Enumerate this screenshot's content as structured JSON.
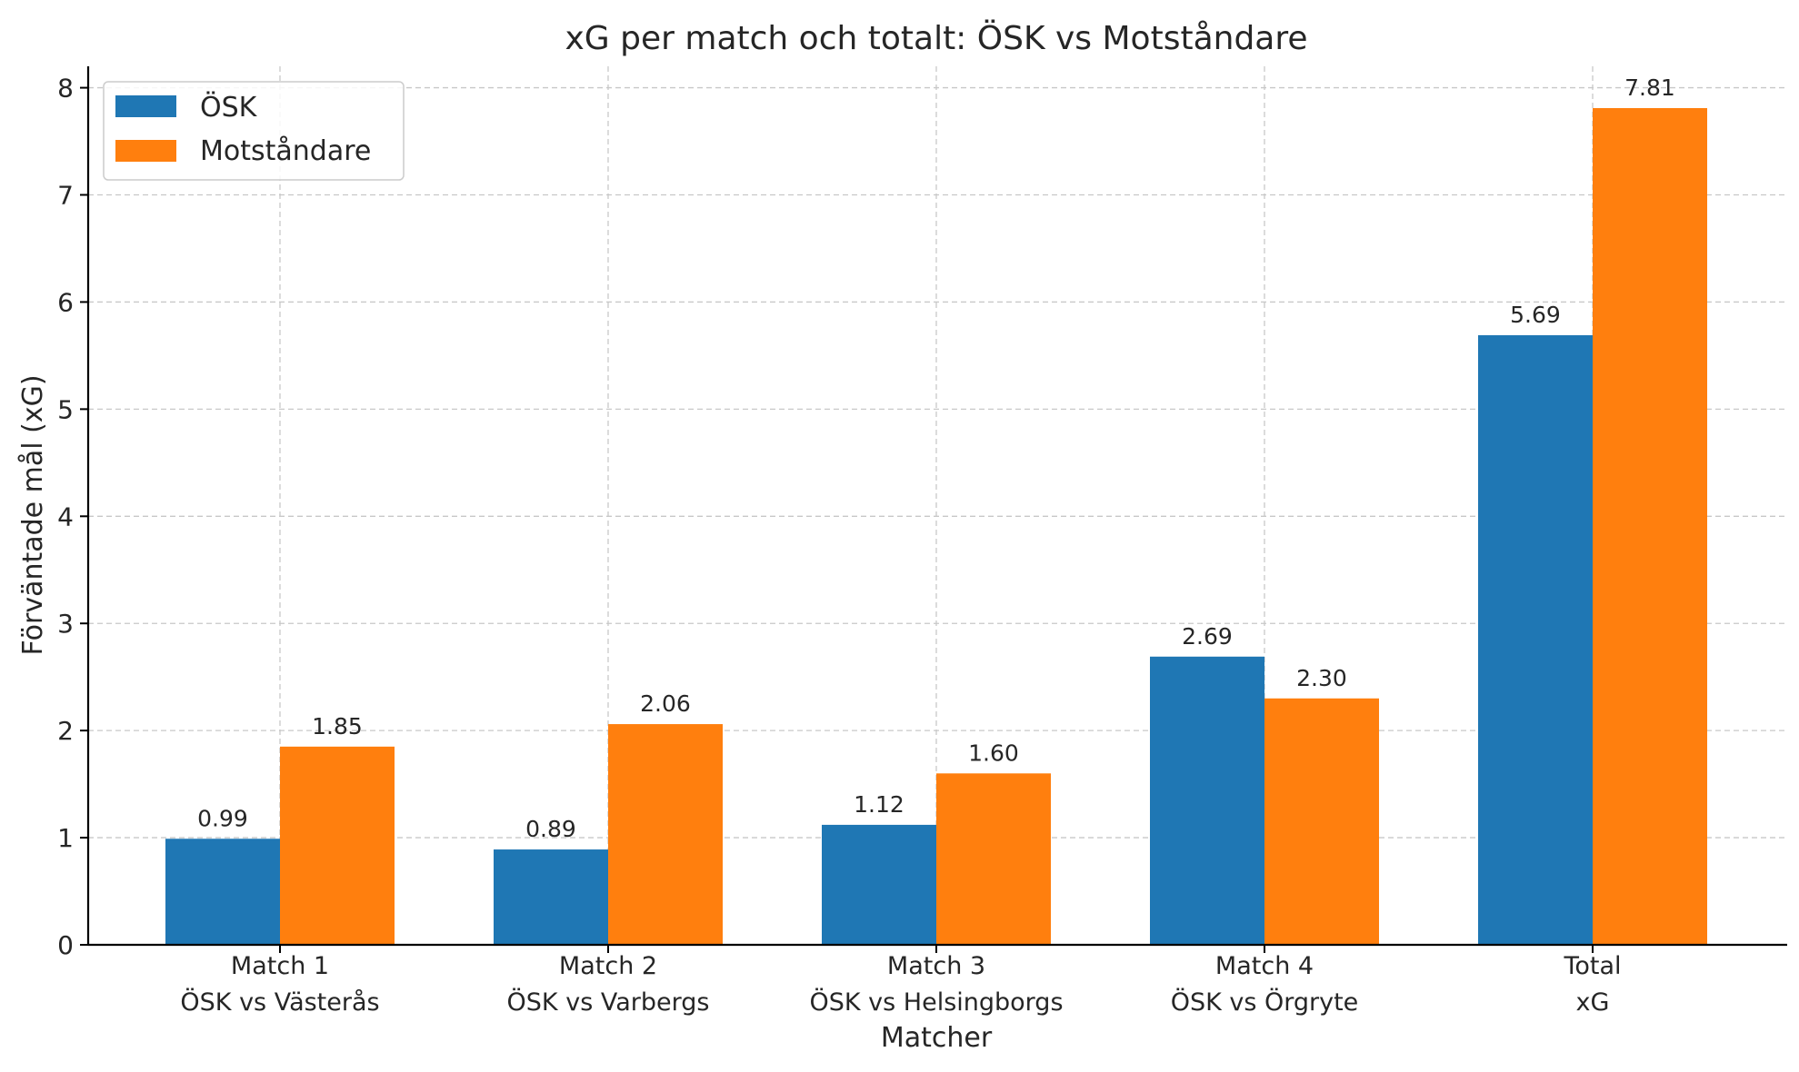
{
  "chart_data": {
    "type": "bar",
    "title": "xG per match och totalt: ÖSK vs Motståndare",
    "xlabel": "Matcher",
    "ylabel": "Förväntade mål (xG)",
    "categories": [
      [
        "Match 1",
        "ÖSK vs Västerås"
      ],
      [
        "Match 2",
        "ÖSK vs Varbergs"
      ],
      [
        "Match 3",
        "ÖSK vs Helsingborgs"
      ],
      [
        "Match 4",
        "ÖSK vs Örgryte"
      ],
      [
        "Total",
        "xG"
      ]
    ],
    "series": [
      {
        "name": "ÖSK",
        "color": "#1f77b4",
        "values": [
          0.99,
          0.89,
          1.12,
          2.69,
          5.69
        ],
        "labels": [
          "0.99",
          "0.89",
          "1.12",
          "2.69",
          "5.69"
        ]
      },
      {
        "name": "Motståndare",
        "color": "#ff7f0e",
        "values": [
          1.85,
          2.06,
          1.6,
          2.3,
          7.81
        ],
        "labels": [
          "1.85",
          "2.06",
          "1.60",
          "2.30",
          "7.81"
        ]
      }
    ],
    "ylim": [
      0,
      8.2
    ],
    "yticks": [
      0,
      1,
      2,
      3,
      4,
      5,
      6,
      7,
      8
    ],
    "grid": true,
    "legend_position": "top-left"
  }
}
